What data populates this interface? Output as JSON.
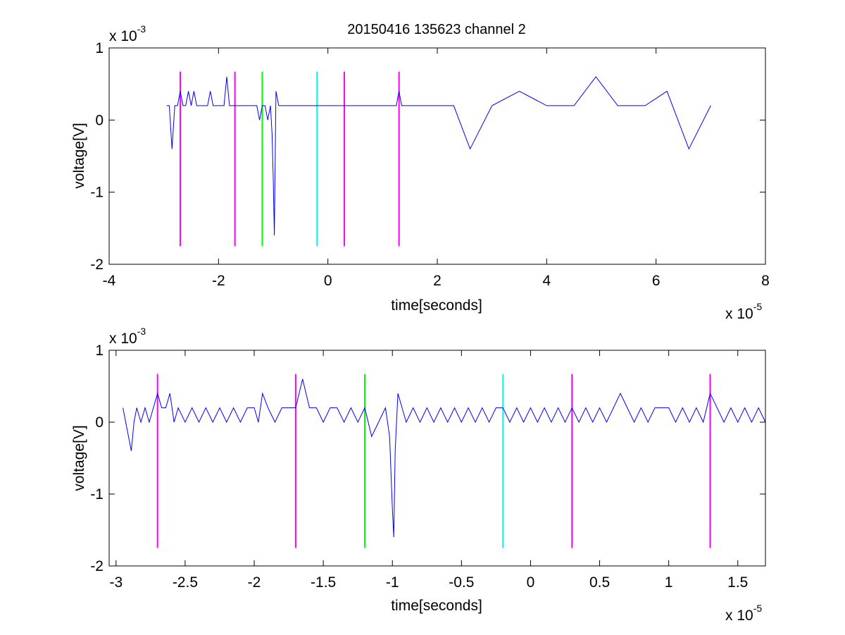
{
  "figure": {
    "title": "20150416 135623 channel 2"
  },
  "chart_data": [
    {
      "type": "line",
      "xlabel": "time[seconds]",
      "ylabel": "voltage[V]",
      "x_exponent_label": "x 10",
      "x_exponent": "-5",
      "y_exponent_label": "x 10",
      "y_exponent": "-3",
      "xlim": [
        -4e-05,
        8e-05
      ],
      "ylim": [
        -0.002,
        0.001
      ],
      "xticks": [
        -4e-05,
        -2e-05,
        0,
        2e-05,
        4e-05,
        6e-05,
        8e-05
      ],
      "xtick_labels": [
        "-4",
        "-2",
        "0",
        "2",
        "4",
        "6",
        "8"
      ],
      "yticks": [
        -0.002,
        -0.001,
        0,
        0.001
      ],
      "ytick_labels": [
        "-2",
        "-1",
        "0",
        "1"
      ],
      "grid": false,
      "series": [
        {
          "color": "#0000ff",
          "x": [
            -2.95e-05,
            -2.9e-05,
            -2.85e-05,
            -2.8e-05,
            -2.75e-05,
            -2.7e-05,
            -2.65e-05,
            -2.6e-05,
            -2.55e-05,
            -2.5e-05,
            -2.45e-05,
            -2.4e-05,
            -2.35e-05,
            -2.3e-05,
            -2.25e-05,
            -2.2e-05,
            -2.15e-05,
            -2.1e-05,
            -2.05e-05,
            -2e-05,
            -1.95e-05,
            -1.9e-05,
            -1.85e-05,
            -1.8e-05,
            -1.75e-05,
            -1.7e-05,
            -1.65e-05,
            -1.6e-05,
            -1.55e-05,
            -1.5e-05,
            -1.45e-05,
            -1.4e-05,
            -1.35e-05,
            -1.3e-05,
            -1.25e-05,
            -1.2e-05,
            -1.15e-05,
            -1.1e-05,
            -1.05e-05,
            -1.02e-05,
            -1e-05,
            -9.8e-06,
            -9.5e-06,
            -9e-06,
            -8.5e-06,
            -8e-06,
            -7.5e-06,
            -7e-06,
            -6.5e-06,
            -6e-06,
            -5.5e-06,
            -5e-06,
            -4.5e-06,
            -4e-06,
            -3.5e-06,
            -3e-06,
            -2.5e-06,
            -2e-06,
            -1.5e-06,
            -1e-06,
            -5e-07,
            0,
            5e-07,
            1e-06,
            1.5e-06,
            2e-06,
            2.5e-06,
            3e-06,
            3.5e-06,
            4e-06,
            4.5e-06,
            5e-06,
            5.5e-06,
            6e-06,
            6.5e-06,
            7e-06,
            7.5e-06,
            8e-06,
            8.5e-06,
            9e-06,
            9.5e-06,
            1e-05,
            1.05e-05,
            1.1e-05,
            1.15e-05,
            1.2e-05,
            1.25e-05,
            1.3e-05,
            1.35e-05,
            1.4e-05,
            1.45e-05,
            1.5e-05,
            1.55e-05,
            1.6e-05,
            1.65e-05,
            1.7e-05,
            2e-05,
            2.3e-05,
            2.6e-05,
            3e-05,
            3.5e-05,
            4e-05,
            4.5e-05,
            4.9e-05,
            5.3e-05,
            5.8e-05,
            6.2e-05,
            6.6e-05,
            7e-05
          ],
          "y": [
            0.0002,
            0.0002,
            -0.0004,
            0.0002,
            0.0002,
            0.0004,
            0.0002,
            0.0002,
            0.0004,
            0.0002,
            0.0004,
            0.0002,
            0.0002,
            0.0002,
            0.0002,
            0.0002,
            0.0004,
            0.0002,
            0.0002,
            0.0002,
            0.0002,
            0.0002,
            0.0006,
            0.0002,
            0.0002,
            0.0002,
            0.0002,
            0.0002,
            0.0002,
            0.0002,
            0.0002,
            0.0002,
            0.0002,
            0.0002,
            0.0,
            0.0002,
            0.0002,
            0.0,
            0.0002,
            -0.0002,
            -0.0008,
            -0.0016,
            0.0004,
            0.0002,
            0.0002,
            0.0002,
            0.0002,
            0.0002,
            0.0002,
            0.0002,
            0.0002,
            0.0002,
            0.0002,
            0.0002,
            0.0002,
            0.0002,
            0.0002,
            0.0002,
            0.0002,
            0.0002,
            0.0002,
            0.0002,
            0.0002,
            0.0002,
            0.0002,
            0.0002,
            0.0002,
            0.0002,
            0.0002,
            0.0002,
            0.0002,
            0.0002,
            0.0002,
            0.0002,
            0.0002,
            0.0002,
            0.0002,
            0.0002,
            0.0002,
            0.0002,
            0.0002,
            0.0002,
            0.0002,
            0.0002,
            0.0002,
            0.0002,
            0.0002,
            0.0004,
            0.0002,
            0.0002,
            0.0002,
            0.0002,
            0.0002,
            0.0002,
            0.0002,
            0.0002,
            0.0002,
            0.0002,
            -0.0004,
            0.0002,
            0.0004,
            0.0002,
            0.0002,
            0.0006,
            0.0002,
            0.0002,
            0.0004,
            -0.0004,
            0.0002
          ]
        }
      ],
      "markers": [
        {
          "x": -2.7e-05,
          "color": "#ff00ff"
        },
        {
          "x": -1.7e-05,
          "color": "#ff00ff"
        },
        {
          "x": -1.2e-05,
          "color": "#00ff00"
        },
        {
          "x": -2e-06,
          "color": "#00ffff"
        },
        {
          "x": 3e-06,
          "color": "#ff00ff"
        },
        {
          "x": 1.3e-05,
          "color": "#ff00ff"
        }
      ],
      "marker_range": [
        -0.00175,
        0.00067
      ]
    },
    {
      "type": "line",
      "xlabel": "time[seconds]",
      "ylabel": "voltage[V]",
      "x_exponent_label": "x 10",
      "x_exponent": "-5",
      "y_exponent_label": "x 10",
      "y_exponent": "-3",
      "xlim": [
        -3.05e-05,
        1.7e-05
      ],
      "ylim": [
        -0.002,
        0.001
      ],
      "xticks": [
        -3e-05,
        -2.5e-05,
        -2e-05,
        -1.5e-05,
        -1e-05,
        -5e-06,
        0,
        5e-06,
        1e-05,
        1.5e-05
      ],
      "xtick_labels": [
        "-3",
        "-2.5",
        "-2",
        "-1.5",
        "-1",
        "-0.5",
        "0",
        "0.5",
        "1",
        "1.5"
      ],
      "yticks": [
        -0.002,
        -0.001,
        0,
        0.001
      ],
      "ytick_labels": [
        "-2",
        "-1",
        "0",
        "1"
      ],
      "grid": false,
      "series": [
        {
          "color": "#0000ff",
          "x": [
            -2.95e-05,
            -2.93e-05,
            -2.91e-05,
            -2.89e-05,
            -2.87e-05,
            -2.85e-05,
            -2.82e-05,
            -2.79e-05,
            -2.76e-05,
            -2.73e-05,
            -2.7e-05,
            -2.67e-05,
            -2.64e-05,
            -2.61e-05,
            -2.58e-05,
            -2.55e-05,
            -2.5e-05,
            -2.45e-05,
            -2.4e-05,
            -2.35e-05,
            -2.3e-05,
            -2.25e-05,
            -2.2e-05,
            -2.15e-05,
            -2.1e-05,
            -2.05e-05,
            -2e-05,
            -1.97e-05,
            -1.94e-05,
            -1.9e-05,
            -1.85e-05,
            -1.8e-05,
            -1.75e-05,
            -1.7e-05,
            -1.65e-05,
            -1.6e-05,
            -1.55e-05,
            -1.5e-05,
            -1.45e-05,
            -1.4e-05,
            -1.35e-05,
            -1.3e-05,
            -1.25e-05,
            -1.2e-05,
            -1.15e-05,
            -1.1e-05,
            -1.05e-05,
            -1.02e-05,
            -1e-05,
            -9.9e-06,
            -9.8e-06,
            -9.6e-06,
            -9.3e-06,
            -9e-06,
            -8.5e-06,
            -8e-06,
            -7.5e-06,
            -7e-06,
            -6.5e-06,
            -6e-06,
            -5.5e-06,
            -5e-06,
            -4.5e-06,
            -4e-06,
            -3.5e-06,
            -3e-06,
            -2.5e-06,
            -2e-06,
            -1.5e-06,
            -1e-06,
            -5e-07,
            0,
            5e-07,
            1e-06,
            1.5e-06,
            2e-06,
            2.5e-06,
            3e-06,
            3.5e-06,
            4e-06,
            4.5e-06,
            5e-06,
            5.5e-06,
            6e-06,
            6.5e-06,
            7e-06,
            7.5e-06,
            8e-06,
            8.5e-06,
            9e-06,
            9.5e-06,
            1e-05,
            1.05e-05,
            1.1e-05,
            1.15e-05,
            1.2e-05,
            1.25e-05,
            1.3e-05,
            1.35e-05,
            1.4e-05,
            1.45e-05,
            1.5e-05,
            1.55e-05,
            1.6e-05,
            1.65e-05,
            1.7e-05
          ],
          "y": [
            0.0002,
            0.0,
            -0.0002,
            -0.0004,
            0.0,
            0.0002,
            0.0,
            0.0002,
            0.0,
            0.0002,
            0.0004,
            0.0002,
            0.0002,
            0.0004,
            0.0,
            0.0002,
            0.0,
            0.0002,
            0.0,
            0.0002,
            0.0,
            0.0002,
            0.0,
            0.0002,
            0.0,
            0.0002,
            0.0002,
            0.0,
            0.0004,
            0.0002,
            0.0,
            0.0002,
            0.0002,
            0.0002,
            0.0006,
            0.0002,
            0.0002,
            0.0,
            0.0002,
            0.0002,
            0.0,
            0.0002,
            0.0,
            0.0002,
            -0.0002,
            0.0,
            0.0002,
            -0.0002,
            -0.0012,
            -0.0016,
            -0.0004,
            0.0004,
            0.0002,
            0.0,
            0.0002,
            0.0,
            0.0002,
            0.0,
            0.0002,
            0.0,
            0.0002,
            0.0,
            0.0002,
            0.0,
            0.0002,
            0.0,
            0.0002,
            0.0002,
            0.0,
            0.0002,
            0.0,
            0.0002,
            0.0,
            0.0002,
            0.0,
            0.0002,
            0.0,
            0.0002,
            0.0,
            0.0002,
            0.0,
            0.0002,
            0.0,
            0.0002,
            0.0004,
            0.0002,
            0.0,
            0.0002,
            0.0,
            0.0002,
            0.0002,
            0.0002,
            0.0,
            0.0002,
            0.0,
            0.0002,
            0.0,
            0.0004,
            0.0002,
            0.0,
            0.0002,
            0.0,
            0.0002,
            0.0,
            0.0002,
            0.0
          ]
        }
      ],
      "markers": [
        {
          "x": -2.7e-05,
          "color": "#ff00ff"
        },
        {
          "x": -1.7e-05,
          "color": "#ff00ff"
        },
        {
          "x": -1.2e-05,
          "color": "#00ff00"
        },
        {
          "x": -2e-06,
          "color": "#00ffff"
        },
        {
          "x": 3e-06,
          "color": "#ff00ff"
        },
        {
          "x": 1.3e-05,
          "color": "#ff00ff"
        }
      ],
      "marker_range": [
        -0.00175,
        0.00067
      ]
    }
  ]
}
